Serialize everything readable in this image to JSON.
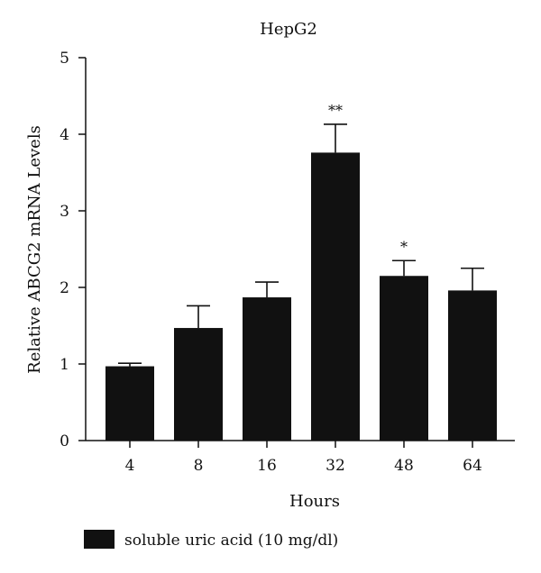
{
  "chart_data": {
    "type": "bar",
    "title": "HepG2",
    "xlabel": "Hours",
    "ylabel": "Relative ABCG2 mRNA Levels",
    "categories": [
      "4",
      "8",
      "16",
      "32",
      "48",
      "64"
    ],
    "ylim": [
      0,
      5
    ],
    "yticks": [
      "0",
      "1",
      "2",
      "3",
      "4",
      "5"
    ],
    "series": [
      {
        "name": "soluble uric acid (10 mg/dl)",
        "values": [
          0.97,
          1.47,
          1.87,
          3.76,
          2.15,
          1.96
        ],
        "errors": [
          0.04,
          0.29,
          0.2,
          0.37,
          0.2,
          0.29
        ],
        "color": "#111111"
      }
    ],
    "annotations": [
      "",
      "",
      "",
      "**",
      "*",
      ""
    ],
    "grid": false,
    "legend_position": "bottom-left"
  }
}
